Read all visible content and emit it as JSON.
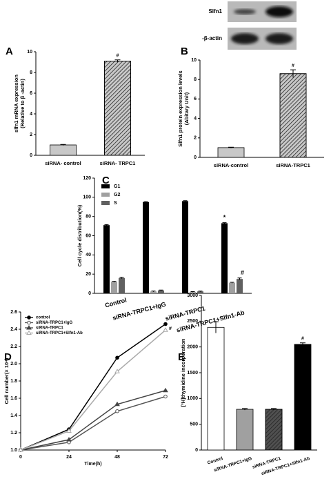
{
  "chart_data": [
    {
      "type": "bar",
      "panel": "A",
      "ylabel": [
        "slfn1 mRNA  expression",
        "(Relative to β -actin)"
      ],
      "categories": [
        "siRNA- control",
        "siRNA- TRPC1"
      ],
      "values": [
        1,
        9.1
      ],
      "errors": [
        0.05,
        0.12
      ],
      "colors": [
        "#c8c8c8",
        "#c8c8c8"
      ],
      "hatch": [
        false,
        true
      ],
      "markers": [
        null,
        "#"
      ],
      "ylim": [
        0,
        10
      ],
      "yticks": [
        0,
        2,
        4,
        6,
        8,
        10
      ]
    },
    {
      "type": "bar",
      "panel": "B",
      "blot_labels": [
        "Slfn1",
        "-β-actin"
      ],
      "ylabel": [
        "Slfn1 protein expression levels",
        "(Abitary Unit)"
      ],
      "categories": [
        "siRNA-control",
        "siRNA-TRPC1"
      ],
      "values": [
        1,
        8.6
      ],
      "errors": [
        0.05,
        0.4
      ],
      "colors": [
        "#c8c8c8",
        "#c8c8c8"
      ],
      "hatch": [
        false,
        true
      ],
      "markers": [
        null,
        "#"
      ],
      "ylim": [
        0,
        10
      ],
      "yticks": [
        0,
        2,
        4,
        6,
        8,
        10
      ]
    },
    {
      "type": "grouped_bar",
      "panel": "C",
      "ylabel": [
        "Cell cycle distribution(%)"
      ],
      "categories": [
        "Control",
        "siRNA-TRPC1+IgG",
        "siRNA-TRPC1",
        "siRNA-TRPC1+Slfn1-Ab"
      ],
      "series": [
        {
          "name": "G1",
          "color": "#000000",
          "values": [
            71,
            95,
            96,
            73
          ],
          "errors": [
            0.6,
            0.5,
            0.5,
            0.6
          ],
          "markers": [
            null,
            null,
            null,
            "*"
          ]
        },
        {
          "name": "G2",
          "color": "#a0a0a0",
          "values": [
            12,
            2,
            1.5,
            11
          ],
          "errors": [
            0.5,
            0.4,
            0.3,
            0.5
          ],
          "markers": [
            null,
            null,
            null,
            null
          ]
        },
        {
          "name": "S",
          "color": "#606060",
          "values": [
            16,
            3,
            2,
            15
          ],
          "errors": [
            0.6,
            0.4,
            0.3,
            1
          ],
          "markers": [
            null,
            null,
            null,
            "#"
          ]
        }
      ],
      "legend": "upper left",
      "ylim": [
        0,
        120
      ],
      "yticks": [
        0,
        20,
        40,
        60,
        80,
        100,
        120
      ]
    },
    {
      "type": "line",
      "panel": "D",
      "xlabel": "Time(h)",
      "ylabel": [
        "Cell number(× 10⁴)"
      ],
      "x": [
        0,
        24,
        48,
        72
      ],
      "series": [
        {
          "name": "control",
          "color": "#000000",
          "marker": "circle",
          "marker_fill": "#000000",
          "values": [
            1,
            1.24,
            2.07,
            2.46
          ],
          "end_marker": null
        },
        {
          "name": "siRNA-TRPC1+IgG",
          "color": "#555555",
          "marker": "circle",
          "marker_fill": "#ffffff",
          "values": [
            1,
            1.09,
            1.45,
            1.62
          ],
          "end_marker": null
        },
        {
          "name": "siRNA-TRPC1",
          "color": "#444444",
          "marker": "triangle",
          "marker_fill": "#444444",
          "values": [
            1,
            1.12,
            1.53,
            1.69
          ],
          "end_marker": null
        },
        {
          "name": "siRNA-TRPC1+Slfn1-Ab",
          "color": "#aaaaaa",
          "marker": "triangle",
          "marker_fill": "#ffffff",
          "values": [
            1,
            1.22,
            1.91,
            2.39
          ],
          "end_marker": "#"
        }
      ],
      "legend": "upper left",
      "xlim": [
        0,
        72
      ],
      "xticks": [
        0,
        24,
        48,
        72
      ],
      "ylim": [
        1,
        2.6
      ],
      "yticks": [
        {
          "value": 1,
          "label": "1.0"
        },
        {
          "value": 1.2,
          "label": "1.2"
        },
        {
          "value": 1.4,
          "label": "1.4"
        },
        {
          "value": 1.6,
          "label": "1.6"
        },
        {
          "value": 1.8,
          "label": "1.8"
        },
        {
          "value": 2,
          "label": "2.0"
        },
        {
          "value": 2.2,
          "label": "2.2"
        },
        {
          "value": 2.4,
          "label": "2.4"
        },
        {
          "value": 2.6,
          "label": "2.6"
        }
      ]
    },
    {
      "type": "bar",
      "panel": "E",
      "ylabel": [
        "[³H]thymidine incorporation"
      ],
      "categories": [
        "Control",
        "siRNA-TRPC1+IgG",
        "siRNA-TRPC1",
        "siRNA-TRPC1+Slfn1-Ab"
      ],
      "values": [
        2380,
        790,
        790,
        2050
      ],
      "errors": [
        110,
        15,
        15,
        30
      ],
      "colors": [
        "#ffffff",
        "#a0a0a0",
        "#505050",
        "#000000"
      ],
      "hatch": [
        false,
        false,
        true,
        false
      ],
      "markers": [
        null,
        null,
        null,
        "#"
      ],
      "ylim": [
        0,
        3000
      ],
      "yticks": [
        0,
        500,
        1000,
        1500,
        2000,
        2500,
        3000
      ]
    }
  ]
}
